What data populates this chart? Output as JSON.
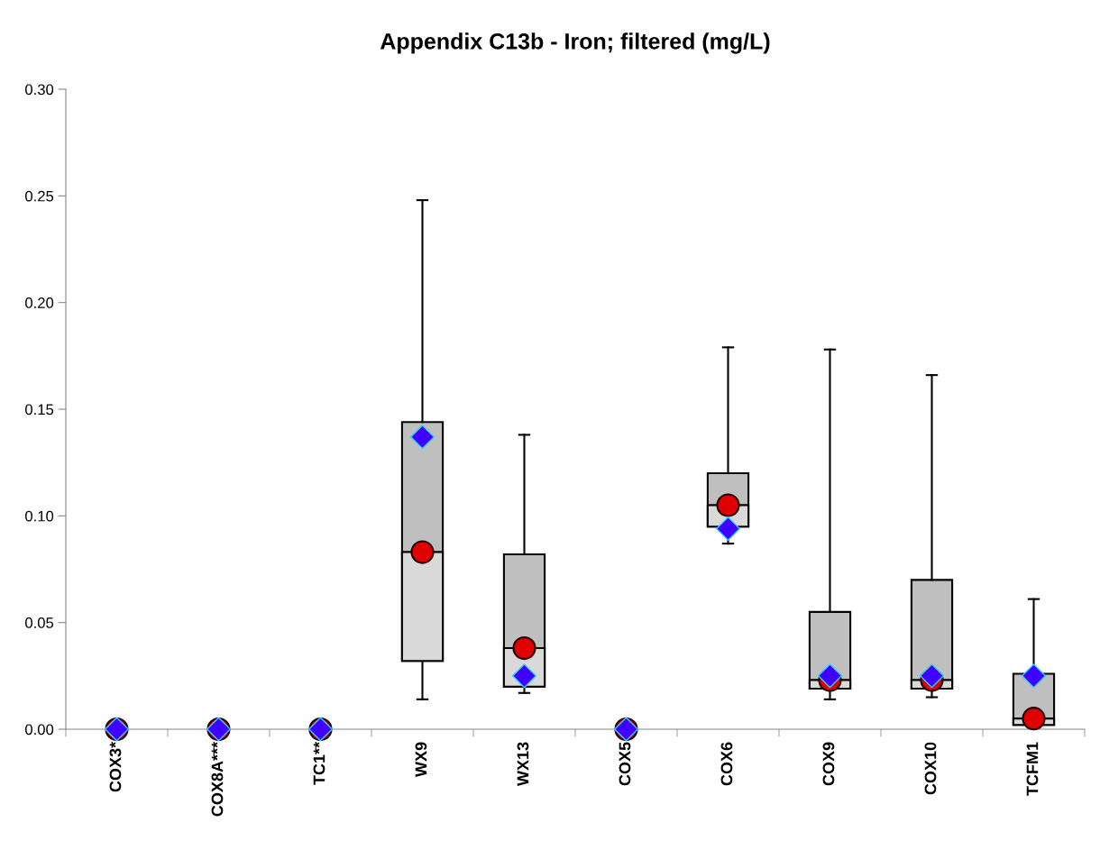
{
  "chart_data": {
    "type": "box",
    "title": "Appendix C13b - Iron; filtered (mg/L)",
    "categories": [
      "COX3*",
      "COX8A***",
      "TC1**",
      "WX9",
      "WX13",
      "COX5",
      "COX6",
      "COX9",
      "COX10",
      "TCFM1"
    ],
    "ylim": [
      0,
      0.3
    ],
    "yticks": [
      {
        "value": 0,
        "label": "0.00"
      },
      {
        "value": 0.05,
        "label": "0.05"
      },
      {
        "value": 0.1,
        "label": "0.10"
      },
      {
        "value": 0.15,
        "label": "0.15"
      },
      {
        "value": 0.2,
        "label": "0.20"
      },
      {
        "value": 0.25,
        "label": "0.25"
      },
      {
        "value": 0.3,
        "label": "0.30"
      }
    ],
    "grid": false,
    "legend": false,
    "series": [
      {
        "color": "#bfbfbf",
        "boxes": [
          null,
          null,
          null,
          {
            "low": 0.014,
            "q1": 0.032,
            "median": 0.083,
            "q3": 0.144,
            "high": 0.248
          },
          {
            "low": 0.017,
            "q1": 0.02,
            "median": 0.038,
            "q3": 0.082,
            "high": 0.138
          },
          null,
          {
            "low": 0.087,
            "q1": 0.095,
            "median": 0.105,
            "q3": 0.12,
            "high": 0.179
          },
          {
            "low": 0.014,
            "q1": 0.019,
            "median": 0.023,
            "q3": 0.055,
            "high": 0.178
          },
          {
            "low": 0.015,
            "q1": 0.019,
            "median": 0.023,
            "q3": 0.07,
            "high": 0.166
          },
          {
            "low": 0.002,
            "q1": 0.002,
            "median": 0.005,
            "q3": 0.026,
            "high": 0.061
          }
        ]
      },
      {
        "type": "scatter",
        "marker": "circle",
        "color": "#e00000",
        "x": [
          "COX3*",
          "COX8A***",
          "TC1**",
          "WX9",
          "WX13",
          "COX5",
          "COX6",
          "COX9",
          "COX10",
          "TCFM1"
        ],
        "values": [
          0,
          0,
          0,
          0.083,
          0.038,
          0,
          0.105,
          0.023,
          0.023,
          0.005
        ]
      },
      {
        "type": "scatter",
        "marker": "diamond",
        "color": "#4000ff",
        "x": [
          "COX3*",
          "COX8A***",
          "TC1**",
          "WX9",
          "WX13",
          "COX5",
          "COX6",
          "COX9",
          "COX10",
          "TCFM1"
        ],
        "values": [
          0,
          0,
          0,
          0.137,
          0.025,
          0,
          0.094,
          0.025,
          0.025,
          0.025
        ]
      }
    ]
  }
}
